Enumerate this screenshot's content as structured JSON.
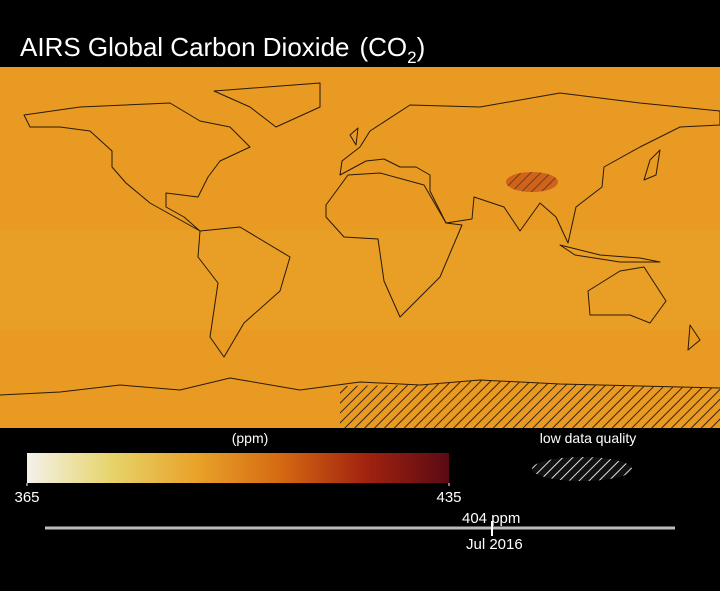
{
  "header": {
    "title": "AIRS Global Carbon Dioxide",
    "formula_open": "(CO",
    "formula_subscript": "2",
    "formula_close": ")"
  },
  "colorbar": {
    "unit": "(ppm)",
    "lim": [
      365,
      435
    ],
    "ticks": [
      365,
      435
    ],
    "colors": [
      "#f4f1ea",
      "#e6d46a",
      "#e9a22a",
      "#d56a12",
      "#a3230f",
      "#5a0a14"
    ]
  },
  "legend": {
    "hatch_label": "low data quality"
  },
  "timeline": {
    "reading": {
      "value": 404,
      "label": "404 ppm"
    },
    "date": "Jul 2016"
  }
}
